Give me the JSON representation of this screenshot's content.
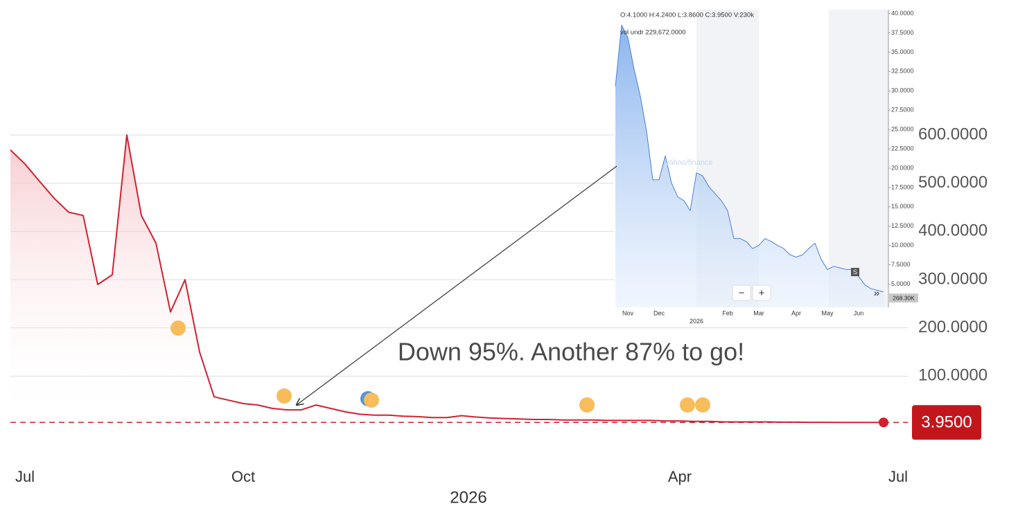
{
  "chart_data": [
    {
      "type": "line",
      "color": "#d2202f",
      "area": true,
      "grid": true,
      "categories": [
        null,
        "Jul",
        null,
        null,
        null,
        null,
        null,
        null,
        null,
        null,
        null,
        null,
        null,
        null,
        null,
        null,
        "Oct",
        null,
        null,
        null,
        null,
        null,
        null,
        null,
        null,
        null,
        null,
        null,
        null,
        null,
        null,
        null,
        null,
        null,
        null,
        null,
        null,
        null,
        null,
        null,
        null,
        null,
        null,
        null,
        null,
        null,
        "Apr",
        null,
        null,
        null,
        null,
        null,
        null,
        null,
        null,
        null,
        null,
        null,
        null,
        null,
        null,
        "Jul"
      ],
      "values": [
        569,
        540,
        504,
        469,
        440,
        433,
        290,
        310,
        600,
        433,
        376,
        233,
        300,
        150,
        57,
        50,
        43,
        40,
        33,
        30,
        30,
        40,
        33,
        26,
        21,
        19,
        19,
        17,
        16,
        14,
        14,
        18,
        15,
        13,
        12,
        11,
        10,
        10,
        9,
        9,
        9,
        8,
        8,
        8,
        8,
        7,
        7,
        6,
        6,
        5,
        5,
        5,
        5,
        4.5,
        4.5,
        4.2,
        4.1,
        4.0,
        4.0,
        4.0,
        3.95,
        null
      ],
      "year_label": "2026",
      "ylim": [
        0,
        600
      ],
      "yticks": [
        {
          "value": 100,
          "label": "100.0000"
        },
        {
          "value": 200,
          "label": "200.0000"
        },
        {
          "value": 300,
          "label": "300.0000"
        },
        {
          "value": 400,
          "label": "400.0000"
        },
        {
          "value": 500,
          "label": "500.0000"
        },
        {
          "value": 600,
          "label": "600.0000"
        }
      ],
      "last_price": {
        "value": 3.95,
        "label": "3.9500"
      },
      "annotation": "Down 95%. Another 87% to go!"
    },
    {
      "type": "line",
      "color": "#4a7fd1",
      "area": true,
      "grid": false,
      "header": "O:4.1000   H:4.2400   L:3.8600   C:3.9500   V:230k",
      "volume_label": "vol undr   229,672.0000",
      "watermark": "yahoo/finance",
      "event_marker": "S",
      "last_volume_label": "268.30K",
      "controls": [
        "−",
        "+",
        "»"
      ],
      "categories": [
        null,
        null,
        "Nov",
        null,
        null,
        null,
        null,
        "Dec",
        null,
        null,
        null,
        null,
        null,
        "2026",
        null,
        null,
        null,
        null,
        "Feb",
        null,
        null,
        null,
        null,
        "Mar",
        null,
        null,
        null,
        null,
        null,
        "Apr",
        null,
        null,
        null,
        null,
        "May",
        null,
        null,
        null,
        null,
        "Jun",
        null,
        null,
        null,
        null
      ],
      "values": [
        30.6,
        38.5,
        36.9,
        32.8,
        29.3,
        24.8,
        18.5,
        18.5,
        21.6,
        18.1,
        16.3,
        15.8,
        14.5,
        19.4,
        19.0,
        17.6,
        16.7,
        15.8,
        14.5,
        10.9,
        10.9,
        10.5,
        9.6,
        10.0,
        10.9,
        10.5,
        10.0,
        9.6,
        8.8,
        8.5,
        8.8,
        9.6,
        10.3,
        8.2,
        6.9,
        7.3,
        7.1,
        6.9,
        6.9,
        6.0,
        4.9,
        4.4,
        4.2,
        4.0
      ],
      "ylim": [
        2,
        40.5
      ],
      "yticks": [
        {
          "value": 5,
          "label": "5.0000"
        },
        {
          "value": 7.5,
          "label": "7.5000"
        },
        {
          "value": 10,
          "label": "10.0000"
        },
        {
          "value": 12.5,
          "label": "12.5000"
        },
        {
          "value": 15,
          "label": "15.0000"
        },
        {
          "value": 17.5,
          "label": "17.5000"
        },
        {
          "value": 20,
          "label": "20.0000"
        },
        {
          "value": 22.5,
          "label": "22.5000"
        },
        {
          "value": 25,
          "label": "25.0000"
        },
        {
          "value": 27.5,
          "label": "27.5000"
        },
        {
          "value": 30,
          "label": "30.0000"
        },
        {
          "value": 32.5,
          "label": "32.5000"
        },
        {
          "value": 35,
          "label": "35.0000"
        },
        {
          "value": 37.5,
          "label": "37.5000"
        },
        {
          "value": 40,
          "label": "40.0000"
        }
      ]
    }
  ]
}
